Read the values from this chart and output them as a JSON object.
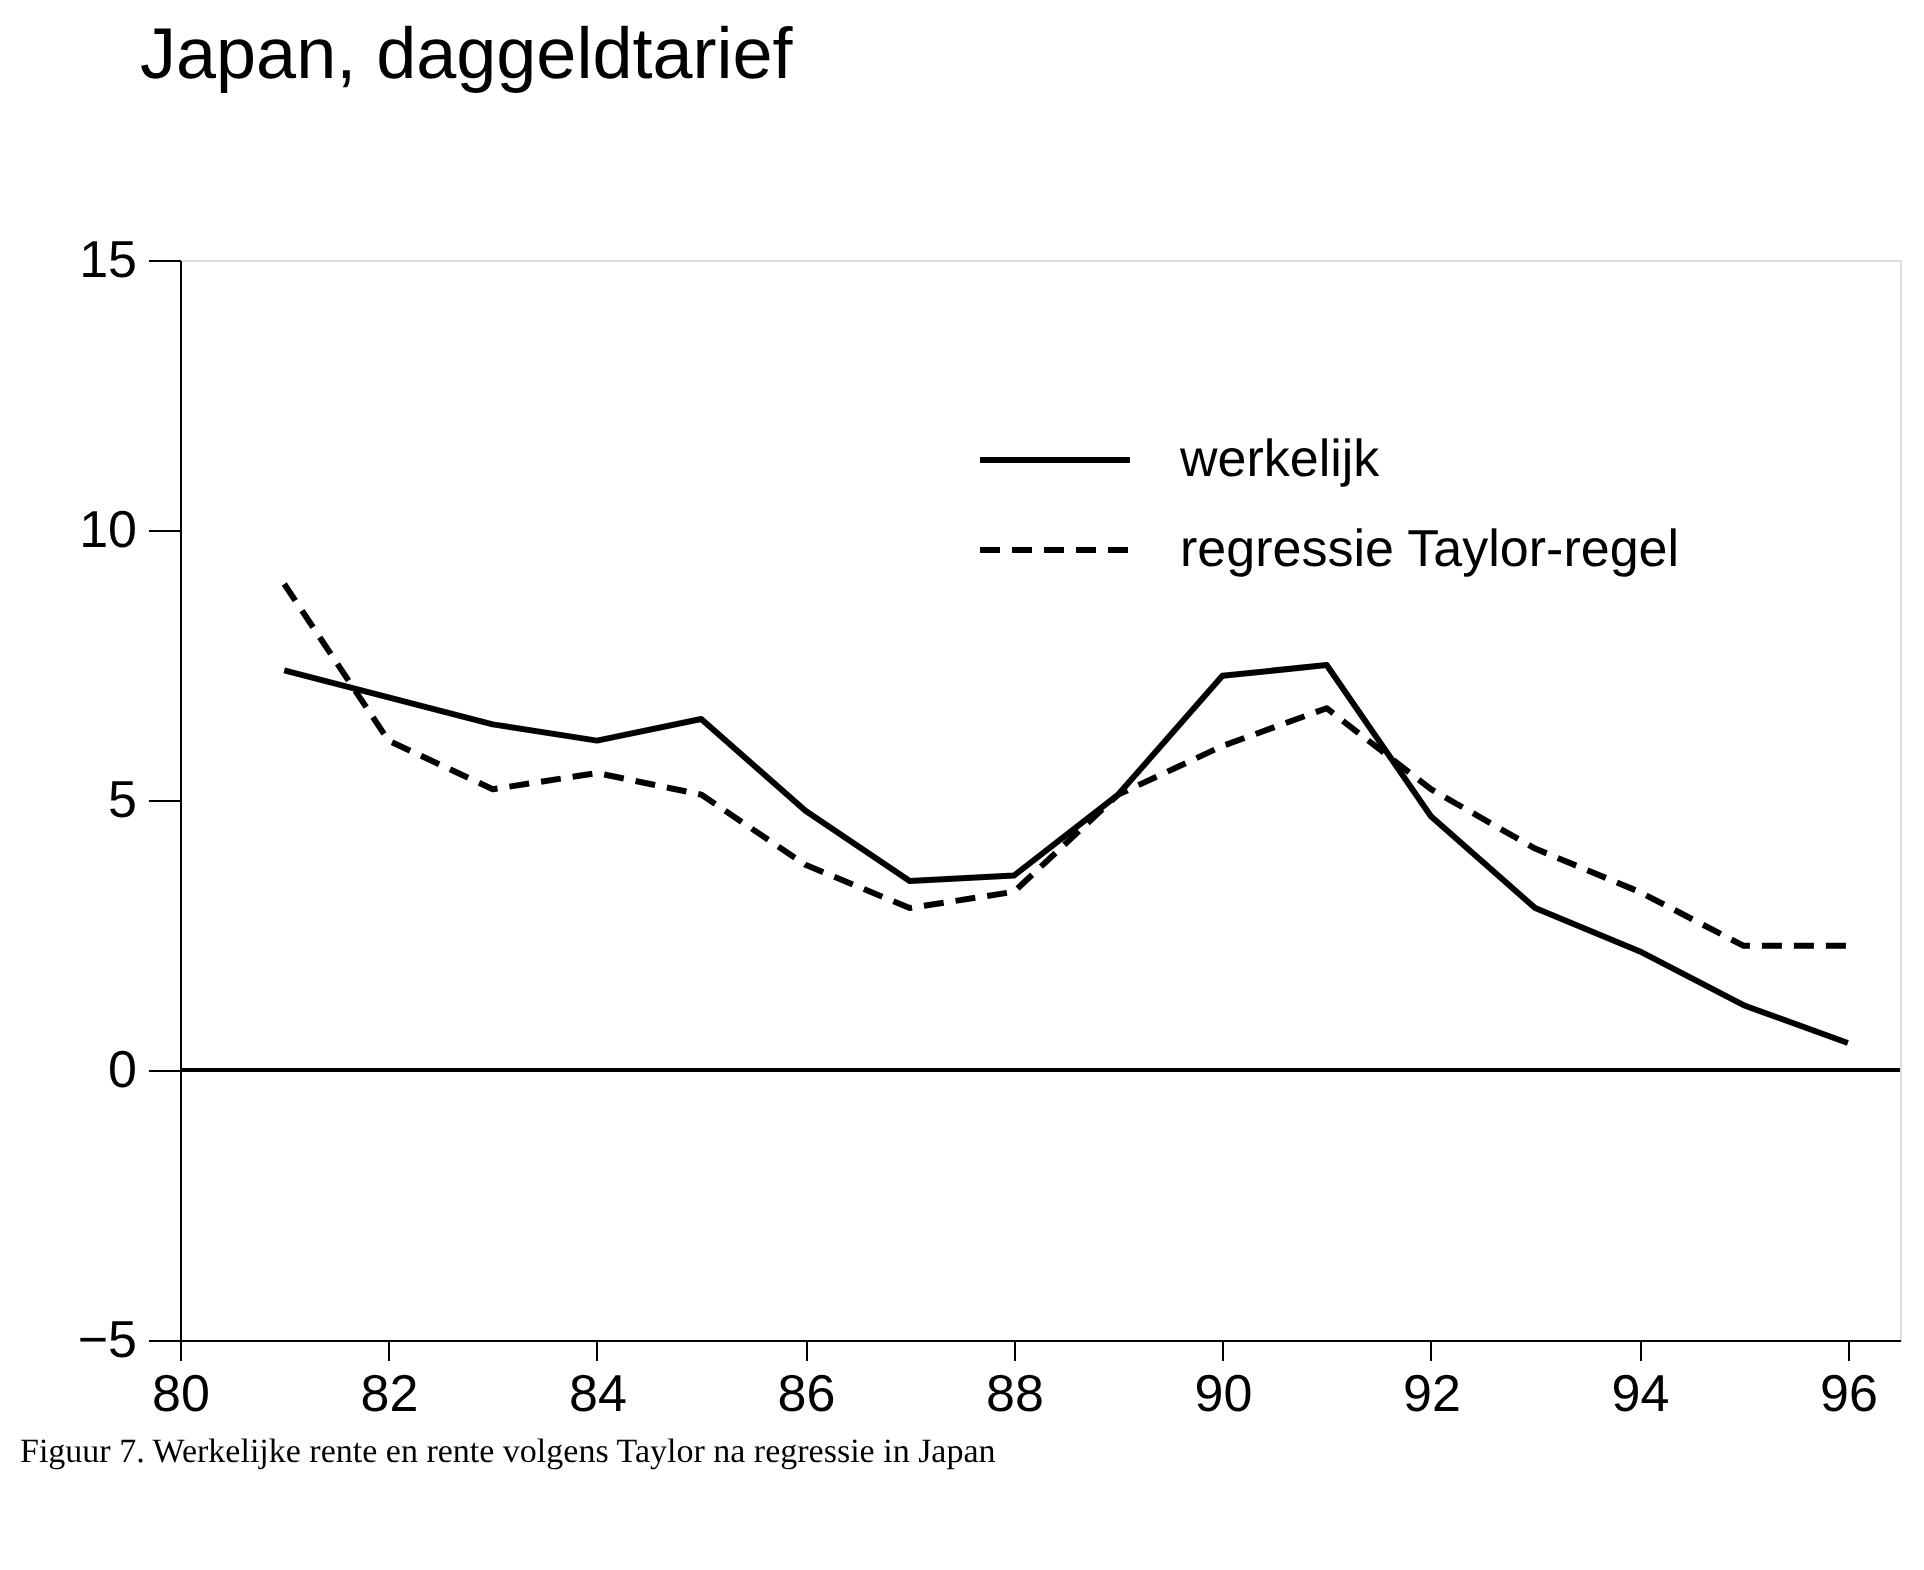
{
  "chart_data": {
    "type": "line",
    "title": "Japan, daggeldtarief",
    "x": [
      81,
      82,
      83,
      84,
      85,
      86,
      87,
      88,
      89,
      90,
      91,
      92,
      93,
      94,
      95,
      96
    ],
    "series": [
      {
        "name": "werkelijk",
        "color": "#000000",
        "line_style": "solid",
        "values": [
          7.4,
          6.9,
          6.4,
          6.1,
          6.5,
          4.8,
          3.5,
          3.6,
          5.1,
          7.3,
          7.5,
          4.7,
          3.0,
          2.2,
          1.2,
          0.5
        ]
      },
      {
        "name": "regressie Taylor-regel",
        "color": "#000000",
        "line_style": "dashed",
        "values": [
          9.0,
          6.1,
          5.2,
          5.5,
          5.1,
          3.8,
          3.0,
          3.3,
          5.1,
          6.0,
          6.7,
          5.2,
          4.1,
          3.3,
          2.3,
          2.3
        ]
      }
    ],
    "xlim": [
      80,
      96.5
    ],
    "xticks": [
      80,
      82,
      84,
      86,
      88,
      90,
      92,
      94,
      96
    ],
    "ylim": [
      -5,
      15
    ],
    "yticks": [
      -5,
      0,
      5,
      10,
      15
    ],
    "ref_lines": [
      {
        "axis": "y",
        "value": 0,
        "color": "#000000"
      }
    ],
    "grid": false,
    "legend": "top right",
    "annotations": [
      "Figuur 7. Werkelijke rente en rente volgens Taylor na regressie in Japan"
    ]
  }
}
